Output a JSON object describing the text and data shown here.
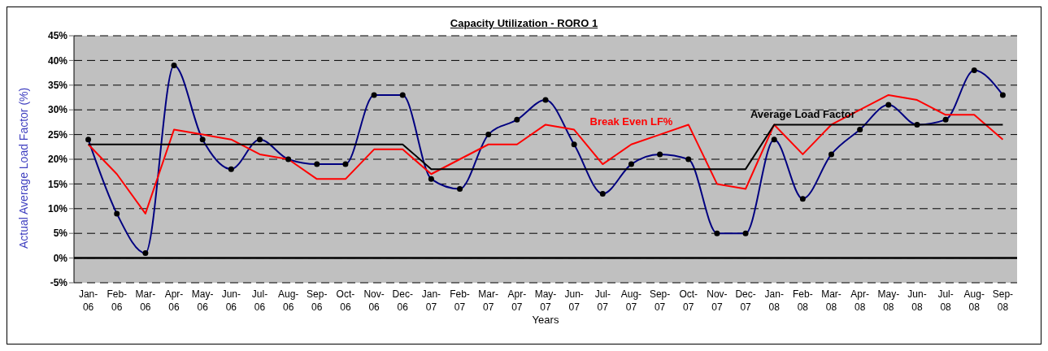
{
  "chart_data": {
    "type": "line",
    "title": "Capacity Utilization - RORO 1",
    "xlabel": "Years",
    "ylabel": "Actual Average Load Factor (%)",
    "categories": [
      "Jan-06",
      "Feb-06",
      "Mar-06",
      "Apr-06",
      "May-06",
      "Jun-06",
      "Jul-06",
      "Aug-06",
      "Sep-06",
      "Oct-06",
      "Nov-06",
      "Dec-06",
      "Jan-07",
      "Feb-07",
      "Mar-07",
      "Apr-07",
      "May-07",
      "Jun-07",
      "Jul-07",
      "Aug-07",
      "Sep-07",
      "Oct-07",
      "Nov-07",
      "Dec-07",
      "Jan-08",
      "Feb-08",
      "Mar-08",
      "Apr-08",
      "May-08",
      "Jun-08",
      "Jul-08",
      "Aug-08",
      "Sep-08"
    ],
    "series": [
      {
        "color": "#000080",
        "marker": "circle",
        "values": [
          24,
          9,
          1,
          39,
          24,
          18,
          24,
          20,
          19,
          19,
          33,
          33,
          16,
          14,
          25,
          28,
          32,
          23,
          13,
          19,
          21,
          20,
          5,
          5,
          24,
          12,
          21,
          26,
          31,
          27,
          28,
          38,
          33
        ]
      },
      {
        "name": "Break Even LF%",
        "color": "#ff0000",
        "marker": "none",
        "values": [
          23,
          17,
          9,
          26,
          25,
          24,
          21,
          20,
          16,
          16,
          22,
          22,
          17,
          20,
          23,
          23,
          27,
          26,
          19,
          23,
          25,
          27,
          15,
          14,
          27,
          21,
          27,
          30,
          33,
          32,
          29,
          29,
          24
        ]
      },
      {
        "name": "Average Load Factor",
        "color": "#000000",
        "marker": "none",
        "values": [
          23,
          23,
          23,
          23,
          23,
          23,
          23,
          23,
          23,
          23,
          23,
          23,
          18,
          18,
          18,
          18,
          18,
          18,
          18,
          18,
          18,
          18,
          18,
          18,
          27,
          27,
          27,
          27,
          27,
          27,
          27,
          27,
          27
        ]
      }
    ],
    "ylim": [
      -5,
      45
    ],
    "yticks": [
      {
        "value": -5,
        "label": "-5%"
      },
      {
        "value": 0,
        "label": "0%"
      },
      {
        "value": 5,
        "label": "5%"
      },
      {
        "value": 10,
        "label": "10%"
      },
      {
        "value": 15,
        "label": "15%"
      },
      {
        "value": 20,
        "label": "20%"
      },
      {
        "value": 25,
        "label": "25%"
      },
      {
        "value": 30,
        "label": "30%"
      },
      {
        "value": 35,
        "label": "35%"
      },
      {
        "value": 40,
        "label": "40%"
      },
      {
        "value": 45,
        "label": "45%"
      }
    ],
    "grid": "y",
    "ref_lines": [
      {
        "axis": "y",
        "value": 0,
        "color": "#000000"
      }
    ]
  }
}
